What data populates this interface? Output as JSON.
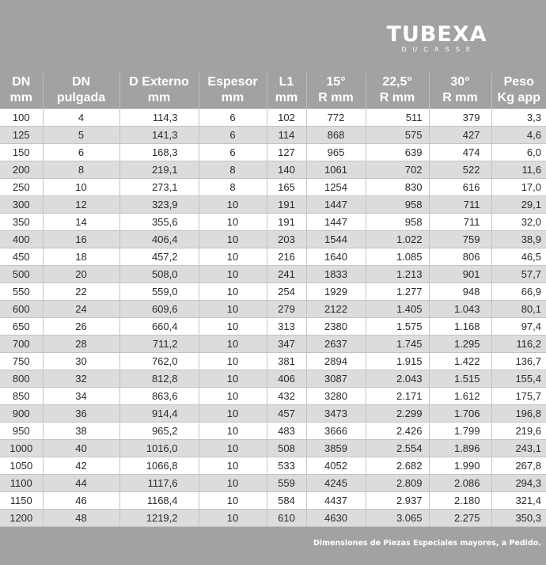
{
  "brand": {
    "name": "TUBEXA",
    "tagline": "DUCASSE"
  },
  "table": {
    "headers": [
      {
        "line1": "DN",
        "line2": "mm"
      },
      {
        "line1": "DN",
        "line2": "pulgada"
      },
      {
        "line1": "D Externo",
        "line2": "mm"
      },
      {
        "line1": "Espesor",
        "line2": "mm"
      },
      {
        "line1": "L1",
        "line2": "mm"
      },
      {
        "line1": "15°",
        "line2": "R  mm"
      },
      {
        "line1": "22,5°",
        "line2": "R mm"
      },
      {
        "line1": "30°",
        "line2": "R mm"
      },
      {
        "line1": "Peso",
        "line2": "Kg app"
      }
    ],
    "rows": [
      [
        "100",
        "4",
        "114,3",
        "6",
        "102",
        "772",
        "511",
        "379",
        "3,3"
      ],
      [
        "125",
        "5",
        "141,3",
        "6",
        "114",
        "868",
        "575",
        "427",
        "4,6"
      ],
      [
        "150",
        "6",
        "168,3",
        "6",
        "127",
        "965",
        "639",
        "474",
        "6,0"
      ],
      [
        "200",
        "8",
        "219,1",
        "8",
        "140",
        "1061",
        "702",
        "522",
        "11,6"
      ],
      [
        "250",
        "10",
        "273,1",
        "8",
        "165",
        "1254",
        "830",
        "616",
        "17,0"
      ],
      [
        "300",
        "12",
        "323,9",
        "10",
        "191",
        "1447",
        "958",
        "711",
        "29,1"
      ],
      [
        "350",
        "14",
        "355,6",
        "10",
        "191",
        "1447",
        "958",
        "711",
        "32,0"
      ],
      [
        "400",
        "16",
        "406,4",
        "10",
        "203",
        "1544",
        "1.022",
        "759",
        "38,9"
      ],
      [
        "450",
        "18",
        "457,2",
        "10",
        "216",
        "1640",
        "1.085",
        "806",
        "46,5"
      ],
      [
        "500",
        "20",
        "508,0",
        "10",
        "241",
        "1833",
        "1.213",
        "901",
        "57,7"
      ],
      [
        "550",
        "22",
        "559,0",
        "10",
        "254",
        "1929",
        "1.277",
        "948",
        "66,9"
      ],
      [
        "600",
        "24",
        "609,6",
        "10",
        "279",
        "2122",
        "1.405",
        "1.043",
        "80,1"
      ],
      [
        "650",
        "26",
        "660,4",
        "10",
        "313",
        "2380",
        "1.575",
        "1.168",
        "97,4"
      ],
      [
        "700",
        "28",
        "711,2",
        "10",
        "347",
        "2637",
        "1.745",
        "1.295",
        "116,2"
      ],
      [
        "750",
        "30",
        "762,0",
        "10",
        "381",
        "2894",
        "1.915",
        "1.422",
        "136,7"
      ],
      [
        "800",
        "32",
        "812,8",
        "10",
        "406",
        "3087",
        "2.043",
        "1.515",
        "155,4"
      ],
      [
        "850",
        "34",
        "863,6",
        "10",
        "432",
        "3280",
        "2.171",
        "1.612",
        "175,7"
      ],
      [
        "900",
        "36",
        "914,4",
        "10",
        "457",
        "3473",
        "2.299",
        "1.706",
        "196,8"
      ],
      [
        "950",
        "38",
        "965,2",
        "10",
        "483",
        "3666",
        "2.426",
        "1.799",
        "219,6"
      ],
      [
        "1000",
        "40",
        "1016,0",
        "10",
        "508",
        "3859",
        "2.554",
        "1.896",
        "243,1"
      ],
      [
        "1050",
        "42",
        "1066,8",
        "10",
        "533",
        "4052",
        "2.682",
        "1.990",
        "267,8"
      ],
      [
        "1100",
        "44",
        "1117,6",
        "10",
        "559",
        "4245",
        "2.809",
        "2.086",
        "294,3"
      ],
      [
        "1150",
        "46",
        "1168,4",
        "10",
        "584",
        "4437",
        "2.937",
        "2.180",
        "321,4"
      ],
      [
        "1200",
        "48",
        "1219,2",
        "10",
        "610",
        "4630",
        "3.065",
        "2.275",
        "350,3"
      ]
    ]
  },
  "footnote": "Dimensiones de Piezas Especiales mayores, a Pedido.",
  "colors": {
    "background": "#a2a2a2",
    "row_light": "#ffffff",
    "row_dark": "#dcdcdc",
    "header_text": "#ffffff"
  }
}
